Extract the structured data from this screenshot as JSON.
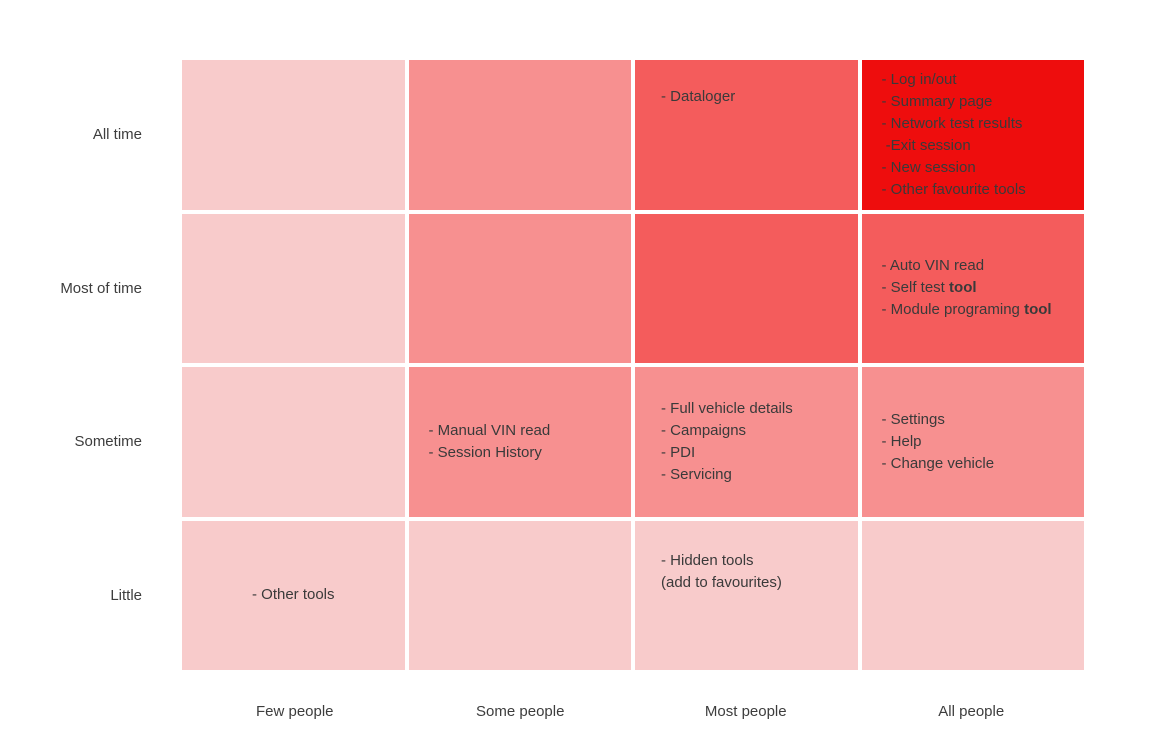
{
  "colors": {
    "level1": "#f8cbcb",
    "level2": "#f79090",
    "level3": "#f45c5c",
    "level4": "#ee0d0d",
    "text": "#3a3a3a",
    "label": "#3d3d3d"
  },
  "chart_data": {
    "type": "heatmap",
    "x_categories": [
      "Few people",
      "Some people",
      "Most people",
      "All people"
    ],
    "y_categories": [
      "All time",
      "Most of time",
      "Sometime",
      "Little"
    ],
    "title": "",
    "xlabel": "",
    "ylabel": "",
    "legend": "off",
    "grid": "off",
    "intensity_scale": {
      "1": "#f8cbcb",
      "2": "#f79090",
      "3": "#f45c5c",
      "4": "#ee0d0d"
    },
    "intensity": [
      [
        1,
        2,
        3,
        4
      ],
      [
        1,
        2,
        3,
        3
      ],
      [
        1,
        2,
        2,
        2
      ],
      [
        1,
        1,
        1,
        1
      ]
    ],
    "cells": {
      "r1c3": {
        "row": "All time",
        "col": "Most people",
        "lines": [
          "- Dataloger"
        ]
      },
      "r1c4": {
        "row": "All time",
        "col": "All people",
        "lines": [
          "- Log in/out",
          "- Summary page",
          "- Network test results",
          " -Exit session",
          "- New session",
          "- Other favourite tools"
        ]
      },
      "r2c4": {
        "row": "Most of time",
        "col": "All people",
        "lines": [
          "- Auto VIN read",
          {
            "pre": "- Self test ",
            "bold": "tool"
          },
          {
            "pre": "- Module programing ",
            "bold": "tool"
          }
        ]
      },
      "r3c2": {
        "row": "Sometime",
        "col": "Some people",
        "lines": [
          "- Manual VIN read",
          "- Session History"
        ]
      },
      "r3c3": {
        "row": "Sometime",
        "col": "Most people",
        "lines": [
          "- Full vehicle details",
          "- Campaigns",
          "- PDI",
          "- Servicing"
        ]
      },
      "r3c4": {
        "row": "Sometime",
        "col": "All people",
        "lines": [
          "- Settings",
          "- Help",
          "- Change vehicle"
        ]
      },
      "r4c1": {
        "row": "Little",
        "col": "Few people",
        "lines": [
          "- Other tools"
        ]
      },
      "r4c3": {
        "row": "Little",
        "col": "Most people",
        "lines": [
          "- Hidden tools",
          "(add to favourites)"
        ]
      }
    }
  }
}
